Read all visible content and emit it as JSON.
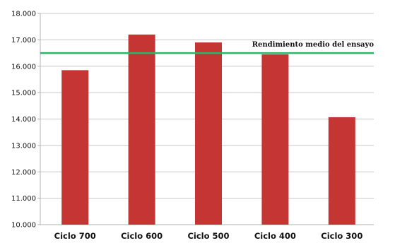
{
  "chart_data": {
    "type": "bar",
    "title": "",
    "xlabel": "",
    "ylabel": "",
    "categories": [
      "Ciclo 700",
      "Ciclo 600",
      "Ciclo 500",
      "Ciclo 400",
      "Ciclo 300"
    ],
    "values": [
      15.85,
      17.2,
      16.9,
      16.45,
      14.07
    ],
    "ylim": [
      10,
      18
    ],
    "yticks": [
      10,
      11,
      12,
      13,
      14,
      15,
      16,
      17,
      18
    ],
    "ytick_labels": [
      "10.000",
      "11.000",
      "12.000",
      "13.000",
      "14.000",
      "15.000",
      "16.000",
      "17.000",
      "18.000"
    ],
    "grid": true,
    "bar_color": "#c43533",
    "reference_line": {
      "value": 16.5,
      "label": "Rendimiento medio del ensayo",
      "color": "#2db56a"
    }
  }
}
